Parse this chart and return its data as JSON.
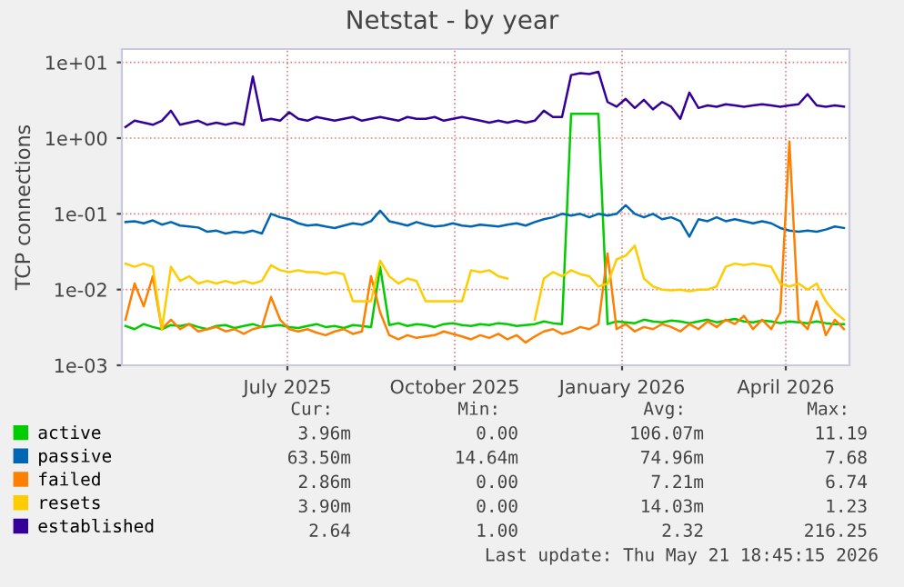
{
  "chart_data": {
    "type": "line",
    "title": "Netstat - by year",
    "ylabel": "TCP connections",
    "log": "y",
    "grid": true,
    "legend": "bottom",
    "x": [
      "2025-04-18",
      "2025-04-23",
      "2025-04-28",
      "2025-05-03",
      "2025-05-08",
      "2025-05-13",
      "2025-05-18",
      "2025-05-23",
      "2025-05-28",
      "2025-06-02",
      "2025-06-07",
      "2025-06-12",
      "2025-06-17",
      "2025-06-22",
      "2025-06-27",
      "2025-07-02",
      "2025-07-07",
      "2025-07-12",
      "2025-07-17",
      "2025-07-22",
      "2025-07-27",
      "2025-08-01",
      "2025-08-06",
      "2025-08-11",
      "2025-08-16",
      "2025-08-21",
      "2025-08-26",
      "2025-08-31",
      "2025-09-05",
      "2025-09-10",
      "2025-09-15",
      "2025-09-20",
      "2025-09-25",
      "2025-09-30",
      "2025-10-05",
      "2025-10-10",
      "2025-10-15",
      "2025-10-20",
      "2025-10-25",
      "2025-10-30",
      "2025-11-04",
      "2025-11-09",
      "2025-11-14",
      "2025-11-19",
      "2025-11-24",
      "2025-11-29",
      "2025-12-04",
      "2025-12-09",
      "2025-12-14",
      "2025-12-19",
      "2025-12-24",
      "2025-12-29",
      "2026-01-03",
      "2026-01-08",
      "2026-01-13",
      "2026-01-18",
      "2026-01-23",
      "2026-01-28",
      "2026-02-02",
      "2026-02-07",
      "2026-02-12",
      "2026-02-17",
      "2026-02-22",
      "2026-02-27",
      "2026-03-04",
      "2026-03-09",
      "2026-03-14",
      "2026-03-19",
      "2026-03-24",
      "2026-03-29",
      "2026-04-03",
      "2026-04-08",
      "2026-04-13",
      "2026-04-18",
      "2026-04-23",
      "2026-04-28",
      "2026-05-03",
      "2026-05-08",
      "2026-05-13",
      "2026-05-18"
    ],
    "xlim": [
      "2025-04-16",
      "2026-05-21"
    ],
    "xticks": [
      {
        "value": "2025-07-16",
        "label": "July 2025"
      },
      {
        "value": "2025-10-16",
        "label": "October 2025"
      },
      {
        "value": "2026-01-16",
        "label": "January 2026"
      },
      {
        "value": "2026-04-16",
        "label": "April 2026"
      }
    ],
    "ylim": [
      0.001,
      15
    ],
    "yticks": [
      {
        "value": 0.001,
        "label": "1e-03"
      },
      {
        "value": 0.01,
        "label": "1e-02"
      },
      {
        "value": 0.1,
        "label": "1e-01"
      },
      {
        "value": 1,
        "label": "1e+00"
      },
      {
        "value": 10,
        "label": "1e+01"
      }
    ],
    "series": [
      {
        "name": "active",
        "color": "#00cc00",
        "values": [
          0.0033,
          0.003,
          0.0035,
          0.0032,
          0.003,
          0.0034,
          0.0033,
          0.0035,
          0.0032,
          0.003,
          0.0033,
          0.0034,
          0.0031,
          0.0033,
          0.0035,
          0.0032,
          0.0033,
          0.0034,
          0.0032,
          0.0031,
          0.0033,
          0.0035,
          0.0032,
          0.0033,
          0.0031,
          0.0034,
          0.0033,
          0.0032,
          0.02,
          0.0034,
          0.0036,
          0.0033,
          0.0035,
          0.0034,
          0.0032,
          0.0035,
          0.0036,
          0.0034,
          0.0033,
          0.0035,
          0.0034,
          0.0036,
          0.0035,
          0.0033,
          0.0034,
          0.0035,
          0.0038,
          0.0036,
          0.0035,
          2.1,
          2.1,
          2.1,
          2.1,
          0.0035,
          0.0038,
          0.0037,
          0.0036,
          0.004,
          0.0038,
          0.0037,
          0.0039,
          0.0038,
          0.0036,
          0.0038,
          0.004,
          0.0037,
          0.0039,
          0.0041,
          0.0038,
          0.0037,
          0.0039,
          0.0038,
          0.0036,
          0.0038,
          0.0037,
          0.0036,
          0.0038,
          0.0036,
          0.0035,
          0.0035
        ]
      },
      {
        "name": "passive",
        "color": "#0066b3",
        "values": [
          0.078,
          0.08,
          0.075,
          0.082,
          0.072,
          0.078,
          0.07,
          0.068,
          0.066,
          0.058,
          0.06,
          0.055,
          0.058,
          0.056,
          0.06,
          0.055,
          0.1,
          0.09,
          0.085,
          0.075,
          0.07,
          0.072,
          0.068,
          0.065,
          0.07,
          0.075,
          0.072,
          0.08,
          0.11,
          0.08,
          0.075,
          0.07,
          0.078,
          0.072,
          0.068,
          0.07,
          0.075,
          0.07,
          0.068,
          0.072,
          0.07,
          0.068,
          0.072,
          0.075,
          0.07,
          0.078,
          0.085,
          0.09,
          0.1,
          0.095,
          0.1,
          0.09,
          0.1,
          0.095,
          0.1,
          0.13,
          0.1,
          0.09,
          0.1,
          0.085,
          0.09,
          0.08,
          0.05,
          0.085,
          0.08,
          0.09,
          0.08,
          0.085,
          0.08,
          0.075,
          0.08,
          0.075,
          0.065,
          0.06,
          0.058,
          0.06,
          0.058,
          0.062,
          0.068,
          0.065
        ]
      },
      {
        "name": "failed",
        "color": "#ff8000",
        "values": [
          0.004,
          0.012,
          0.006,
          0.015,
          0.003,
          0.004,
          0.003,
          0.0035,
          0.0028,
          0.003,
          0.0032,
          0.0028,
          0.003,
          0.0026,
          0.003,
          0.0032,
          0.008,
          0.004,
          0.003,
          0.0028,
          0.003,
          0.0027,
          0.0025,
          0.0028,
          0.003,
          0.0026,
          0.0028,
          0.015,
          0.005,
          0.0025,
          0.0022,
          0.0025,
          0.0023,
          0.0024,
          0.0025,
          0.0028,
          0.0026,
          0.0024,
          0.0022,
          0.0025,
          0.0023,
          0.0026,
          0.0022,
          0.0025,
          0.002,
          0.0024,
          0.0028,
          0.003,
          0.0026,
          0.0028,
          0.0032,
          0.003,
          0.0035,
          0.03,
          0.003,
          0.0035,
          0.0028,
          0.0032,
          0.003,
          0.0035,
          0.0032,
          0.0028,
          0.0035,
          0.003,
          0.0038,
          0.0032,
          0.004,
          0.0035,
          0.0045,
          0.003,
          0.004,
          0.003,
          0.005,
          0.9,
          0.004,
          0.003,
          0.007,
          0.0025,
          0.004,
          0.003
        ]
      },
      {
        "name": "resets",
        "color": "#ffcc00",
        "values": [
          0.022,
          0.02,
          0.022,
          0.02,
          0.003,
          0.02,
          0.013,
          0.015,
          0.012,
          0.013,
          0.012,
          0.013,
          0.012,
          0.013,
          0.012,
          0.013,
          0.021,
          0.018,
          0.017,
          0.018,
          0.017,
          0.017,
          0.016,
          0.017,
          0.016,
          0.007,
          0.007,
          0.007,
          0.024,
          0.015,
          0.012,
          0.014,
          0.013,
          0.007,
          0.007,
          0.007,
          0.007,
          0.007,
          0.018,
          0.017,
          0.018,
          0.015,
          0.014,
          null,
          null,
          0.004,
          0.014,
          0.017,
          0.015,
          0.018,
          0.016,
          0.015,
          0.011,
          0.012,
          0.025,
          0.028,
          0.038,
          0.014,
          0.011,
          0.01,
          0.0098,
          0.01,
          0.0095,
          0.01,
          0.01,
          0.011,
          0.02,
          0.022,
          0.021,
          0.022,
          0.021,
          0.02,
          0.012,
          0.011,
          0.012,
          0.01,
          0.012,
          0.007,
          0.005,
          0.004
        ]
      },
      {
        "name": "established",
        "color": "#330099",
        "values": [
          1.4,
          1.7,
          1.6,
          1.5,
          1.7,
          2.3,
          1.5,
          1.6,
          1.7,
          1.5,
          1.6,
          1.5,
          1.6,
          1.5,
          6.5,
          1.7,
          1.8,
          1.7,
          2.2,
          1.8,
          1.7,
          1.9,
          1.8,
          1.7,
          1.8,
          1.9,
          1.7,
          1.8,
          1.9,
          1.8,
          1.7,
          1.9,
          1.8,
          1.8,
          1.9,
          1.7,
          1.8,
          1.9,
          1.8,
          1.7,
          1.6,
          1.7,
          1.6,
          1.7,
          1.6,
          1.7,
          2.3,
          1.9,
          1.9,
          6.8,
          7.2,
          7.0,
          7.5,
          3.0,
          2.6,
          3.3,
          2.5,
          3.2,
          2.4,
          3.0,
          2.6,
          1.8,
          4.0,
          2.5,
          2.7,
          2.6,
          2.8,
          2.7,
          2.6,
          2.7,
          2.8,
          2.7,
          2.6,
          2.7,
          2.8,
          3.8,
          2.7,
          2.6,
          2.7,
          2.6
        ]
      }
    ],
    "annotations": [
      "Cur:",
      "Min:",
      "Avg:",
      "Max:",
      "3.96m",
      "0.00",
      "106.07m",
      "11.19",
      "63.50m",
      "14.64m",
      "74.96m",
      "7.68",
      "2.86m",
      "0.00",
      "7.21m",
      "6.74",
      "3.90m",
      "0.00",
      "14.03m",
      "1.23",
      "2.64",
      "1.00",
      "2.32",
      "216.25",
      "Last update: Thu May 21 18:45:15 2026"
    ]
  }
}
